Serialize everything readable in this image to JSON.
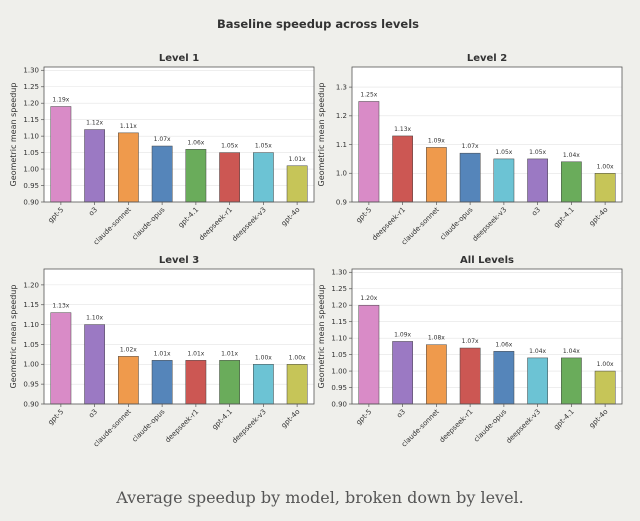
{
  "figure": {
    "title": "Baseline speedup across levels",
    "caption": "Average speedup by model, broken down by level."
  },
  "chart_data": [
    {
      "type": "bar",
      "title": "Level 1",
      "ylabel": "Geometric mean speedup",
      "ylim": [
        0.9,
        1.31
      ],
      "yticks": [
        0.9,
        0.95,
        1.0,
        1.05,
        1.1,
        1.15,
        1.2,
        1.25,
        1.3
      ],
      "ytick_decimals": 2,
      "categories": [
        "gpt-5",
        "o3",
        "claude-sonnet",
        "claude-opus",
        "gpt-4.1",
        "deepseek-r1",
        "deepseek-v3",
        "gpt-4o"
      ],
      "values": [
        1.19,
        1.12,
        1.11,
        1.07,
        1.06,
        1.05,
        1.05,
        1.01
      ],
      "labels": [
        "1.19x",
        "1.12x",
        "1.11x",
        "1.07x",
        "1.06x",
        "1.05x",
        "1.05x",
        "1.01x"
      ],
      "colors": [
        "#d98bc7",
        "#9b79c3",
        "#ef9a4c",
        "#5585ba",
        "#6aac5b",
        "#cc5753",
        "#6cc3d4",
        "#c6c558"
      ]
    },
    {
      "type": "bar",
      "title": "Level 2",
      "ylabel": "Geometric mean speedup",
      "ylim": [
        0.9,
        1.37
      ],
      "yticks": [
        0.9,
        1.0,
        1.1,
        1.2,
        1.3
      ],
      "ytick_decimals": 1,
      "categories": [
        "gpt-5",
        "deepseek-r1",
        "claude-sonnet",
        "claude-opus",
        "deepseek-v3",
        "o3",
        "gpt-4.1",
        "gpt-4o"
      ],
      "values": [
        1.25,
        1.13,
        1.09,
        1.07,
        1.05,
        1.05,
        1.04,
        1.0
      ],
      "labels": [
        "1.25x",
        "1.13x",
        "1.09x",
        "1.07x",
        "1.05x",
        "1.05x",
        "1.04x",
        "1.00x"
      ],
      "colors": [
        "#d98bc7",
        "#cc5753",
        "#ef9a4c",
        "#5585ba",
        "#6cc3d4",
        "#9b79c3",
        "#6aac5b",
        "#c6c558"
      ]
    },
    {
      "type": "bar",
      "title": "Level 3",
      "ylabel": "Geometric mean speedup",
      "ylim": [
        0.9,
        1.24
      ],
      "yticks": [
        0.9,
        0.95,
        1.0,
        1.05,
        1.1,
        1.15,
        1.2
      ],
      "ytick_decimals": 2,
      "categories": [
        "gpt-5",
        "o3",
        "claude-sonnet",
        "claude-opus",
        "deepseek-r1",
        "gpt-4.1",
        "deepseek-v3",
        "gpt-4o"
      ],
      "values": [
        1.13,
        1.1,
        1.02,
        1.01,
        1.01,
        1.01,
        1.0,
        1.0
      ],
      "labels": [
        "1.13x",
        "1.10x",
        "1.02x",
        "1.01x",
        "1.01x",
        "1.01x",
        "1.00x",
        "1.00x"
      ],
      "colors": [
        "#d98bc7",
        "#9b79c3",
        "#ef9a4c",
        "#5585ba",
        "#cc5753",
        "#6aac5b",
        "#6cc3d4",
        "#c6c558"
      ]
    },
    {
      "type": "bar",
      "title": "All Levels",
      "ylabel": "Geometric mean speedup",
      "ylim": [
        0.9,
        1.31
      ],
      "yticks": [
        0.9,
        0.95,
        1.0,
        1.05,
        1.1,
        1.15,
        1.2,
        1.25,
        1.3
      ],
      "ytick_decimals": 2,
      "categories": [
        "gpt-5",
        "o3",
        "claude-sonnet",
        "deepseek-r1",
        "claude-opus",
        "deepseek-v3",
        "gpt-4.1",
        "gpt-4o"
      ],
      "values": [
        1.2,
        1.09,
        1.08,
        1.07,
        1.06,
        1.04,
        1.04,
        1.0
      ],
      "labels": [
        "1.20x",
        "1.09x",
        "1.08x",
        "1.07x",
        "1.06x",
        "1.04x",
        "1.04x",
        "1.00x"
      ],
      "colors": [
        "#d98bc7",
        "#9b79c3",
        "#ef9a4c",
        "#cc5753",
        "#5585ba",
        "#6cc3d4",
        "#6aac5b",
        "#c6c558"
      ]
    }
  ]
}
